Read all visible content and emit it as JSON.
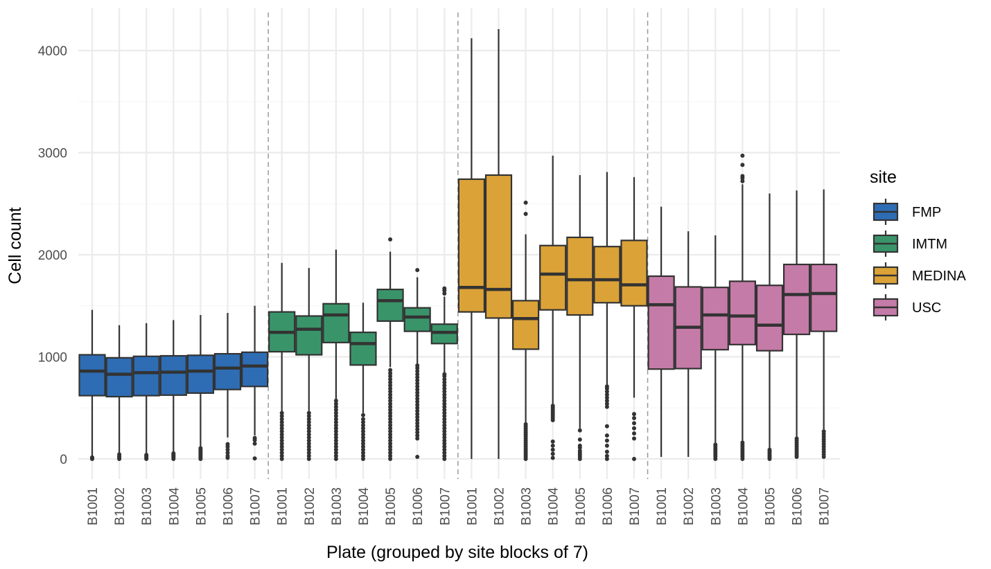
{
  "chart_data": {
    "type": "boxplot",
    "xlabel": "Plate (grouped by site blocks of 7)",
    "ylabel": "Cell count",
    "ylim": [
      -180,
      4420
    ],
    "yticks": [
      0,
      1000,
      2000,
      3000,
      4000
    ],
    "ytick_labels": [
      "0",
      "1000",
      "2000",
      "3000",
      "4000"
    ],
    "plates": [
      "B1001",
      "B1002",
      "B1003",
      "B1004",
      "B1005",
      "B1006",
      "B1007"
    ],
    "grid": true,
    "separators": "dashed vertical lines between site blocks",
    "legend": {
      "title": "site",
      "position": "right",
      "entries": [
        {
          "label": "FMP",
          "color": "#2E6DB4"
        },
        {
          "label": "IMTM",
          "color": "#3A946A"
        },
        {
          "label": "MEDINA",
          "color": "#DBA237"
        },
        {
          "label": "USC",
          "color": "#C57BA7"
        }
      ]
    },
    "series": [
      {
        "site": "FMP",
        "color": "#2E6DB4",
        "boxes": [
          {
            "plate": "B1001",
            "low": 10,
            "q1": 620,
            "median": 860,
            "q3": 1020,
            "high": 1460,
            "outliers": [
              0,
              5,
              15
            ]
          },
          {
            "plate": "B1002",
            "low": 40,
            "q1": 610,
            "median": 830,
            "q3": 990,
            "high": 1310,
            "outliers": [
              0,
              10,
              20,
              30,
              45
            ]
          },
          {
            "plate": "B1003",
            "low": 45,
            "q1": 620,
            "median": 845,
            "q3": 1005,
            "high": 1330,
            "outliers": [
              0,
              10,
              20,
              30,
              40
            ]
          },
          {
            "plate": "B1004",
            "low": 50,
            "q1": 625,
            "median": 850,
            "q3": 1010,
            "high": 1360,
            "outliers": [
              0,
              15,
              25,
              35,
              45,
              55
            ]
          },
          {
            "plate": "B1005",
            "low": 110,
            "q1": 645,
            "median": 860,
            "q3": 1015,
            "high": 1410,
            "outliers": [
              0,
              15,
              30,
              45,
              60,
              75,
              90,
              105
            ]
          },
          {
            "plate": "B1006",
            "low": 210,
            "q1": 680,
            "median": 890,
            "q3": 1030,
            "high": 1430,
            "outliers": [
              10,
              30,
              60,
              90,
              120,
              145
            ]
          },
          {
            "plate": "B1007",
            "low": 230,
            "q1": 710,
            "median": 910,
            "q3": 1045,
            "high": 1500,
            "outliers": [
              5,
              150,
              185,
              205
            ]
          }
        ]
      },
      {
        "site": "IMTM",
        "color": "#3A946A",
        "boxes": [
          {
            "plate": "B1001",
            "low": 460,
            "q1": 1050,
            "median": 1240,
            "q3": 1440,
            "high": 1920,
            "outliers": [
              0,
              30,
              60,
              90,
              120,
              150,
              180,
              210,
              240,
              270,
              300,
              330,
              360,
              390,
              420,
              450
            ]
          },
          {
            "plate": "B1002",
            "low": 470,
            "q1": 1020,
            "median": 1270,
            "q3": 1400,
            "high": 1870,
            "outliers": [
              0,
              30,
              60,
              90,
              120,
              150,
              180,
              210,
              240,
              270,
              300,
              330,
              360,
              390,
              420,
              450
            ]
          },
          {
            "plate": "B1003",
            "low": 590,
            "q1": 1140,
            "median": 1410,
            "q3": 1520,
            "high": 2050,
            "outliers": [
              0,
              30,
              60,
              90,
              120,
              150,
              180,
              210,
              240,
              270,
              300,
              330,
              360,
              390,
              420,
              450,
              480,
              510,
              540,
              570
            ]
          },
          {
            "plate": "B1004",
            "low": 450,
            "q1": 920,
            "median": 1130,
            "q3": 1240,
            "high": 1530,
            "outliers": [
              0,
              30,
              60,
              90,
              120,
              150,
              180,
              210,
              240,
              270,
              300,
              330,
              360,
              390,
              430
            ]
          },
          {
            "plate": "B1005",
            "low": 900,
            "q1": 1350,
            "median": 1550,
            "q3": 1660,
            "high": 2030,
            "outliers": [
              0,
              30,
              60,
              90,
              120,
              150,
              180,
              210,
              240,
              270,
              300,
              330,
              360,
              390,
              420,
              450,
              480,
              510,
              540,
              570,
              600,
              630,
              660,
              690,
              720,
              750,
              780,
              810,
              840,
              870,
              2150
            ]
          },
          {
            "plate": "B1006",
            "low": 930,
            "q1": 1250,
            "median": 1390,
            "q3": 1480,
            "high": 1780,
            "outliers": [
              20,
              200,
              230,
              260,
              290,
              320,
              350,
              380,
              410,
              440,
              470,
              500,
              530,
              560,
              590,
              620,
              650,
              680,
              710,
              740,
              770,
              800,
              830,
              860,
              890,
              915,
              1850
            ]
          },
          {
            "plate": "B1007",
            "low": 840,
            "q1": 1130,
            "median": 1240,
            "q3": 1320,
            "high": 1590,
            "outliers": [
              0,
              30,
              60,
              90,
              120,
              150,
              180,
              210,
              240,
              270,
              300,
              330,
              360,
              390,
              420,
              450,
              480,
              510,
              540,
              570,
              600,
              630,
              660,
              690,
              720,
              750,
              780,
              810,
              830,
              1620,
              1650,
              1670
            ]
          }
        ]
      },
      {
        "site": "MEDINA",
        "color": "#DBA237",
        "boxes": [
          {
            "plate": "B1001",
            "low": 0,
            "q1": 1440,
            "median": 1680,
            "q3": 2740,
            "high": 4120,
            "outliers": []
          },
          {
            "plate": "B1002",
            "low": 0,
            "q1": 1380,
            "median": 1660,
            "q3": 2780,
            "high": 4210,
            "outliers": []
          },
          {
            "plate": "B1003",
            "low": 350,
            "q1": 1075,
            "median": 1375,
            "q3": 1550,
            "high": 2200,
            "outliers": [
              0,
              20,
              40,
              60,
              80,
              100,
              120,
              140,
              160,
              180,
              200,
              220,
              240,
              260,
              280,
              300,
              320,
              340,
              2400,
              2510
            ]
          },
          {
            "plate": "B1004",
            "low": 530,
            "q1": 1460,
            "median": 1810,
            "q3": 2090,
            "high": 2970,
            "outliers": [
              10,
              50,
              90,
              130,
              170,
              380,
              400,
              420,
              440,
              460,
              480,
              500,
              520
            ]
          },
          {
            "plate": "B1005",
            "low": 300,
            "q1": 1410,
            "median": 1755,
            "q3": 2170,
            "high": 2780,
            "outliers": [
              0,
              20,
              40,
              60,
              80,
              110,
              130,
              190,
              280
            ]
          },
          {
            "plate": "B1006",
            "low": 720,
            "q1": 1530,
            "median": 1755,
            "q3": 2080,
            "high": 2810,
            "outliers": [
              0,
              30,
              70,
              130,
              180,
              230,
              320,
              510,
              540,
              570,
              600,
              630,
              660,
              690,
              710
            ]
          },
          {
            "plate": "B1007",
            "low": 600,
            "q1": 1500,
            "median": 1705,
            "q3": 2140,
            "high": 2760,
            "outliers": [
              0,
              200,
              250,
              300,
              350,
              400,
              440
            ]
          }
        ]
      },
      {
        "site": "USC",
        "color": "#C57BA7",
        "boxes": [
          {
            "plate": "B1001",
            "low": 20,
            "q1": 880,
            "median": 1510,
            "q3": 1790,
            "high": 2470,
            "outliers": []
          },
          {
            "plate": "B1002",
            "low": 20,
            "q1": 885,
            "median": 1290,
            "q3": 1685,
            "high": 2230,
            "outliers": []
          },
          {
            "plate": "B1003",
            "low": 150,
            "q1": 1070,
            "median": 1410,
            "q3": 1680,
            "high": 2190,
            "outliers": [
              0,
              20,
              40,
              60,
              80,
              100,
              120,
              140
            ]
          },
          {
            "plate": "B1004",
            "low": 180,
            "q1": 1120,
            "median": 1400,
            "q3": 1740,
            "high": 2690,
            "outliers": [
              0,
              20,
              40,
              60,
              80,
              100,
              120,
              140,
              160,
              2720,
              2750,
              2770,
              2880,
              2970
            ]
          },
          {
            "plate": "B1005",
            "low": 100,
            "q1": 1060,
            "median": 1310,
            "q3": 1700,
            "high": 2600,
            "outliers": [
              0,
              15,
              30,
              45,
              60,
              75,
              90
            ]
          },
          {
            "plate": "B1006",
            "low": 210,
            "q1": 1220,
            "median": 1610,
            "q3": 1905,
            "high": 2630,
            "outliers": [
              20,
              40,
              60,
              80,
              100,
              120,
              140,
              160,
              180,
              200
            ]
          },
          {
            "plate": "B1007",
            "low": 290,
            "q1": 1250,
            "median": 1620,
            "q3": 1905,
            "high": 2640,
            "outliers": [
              20,
              45,
              70,
              95,
              120,
              145,
              170,
              195,
              220,
              245,
              270
            ]
          }
        ]
      }
    ]
  }
}
